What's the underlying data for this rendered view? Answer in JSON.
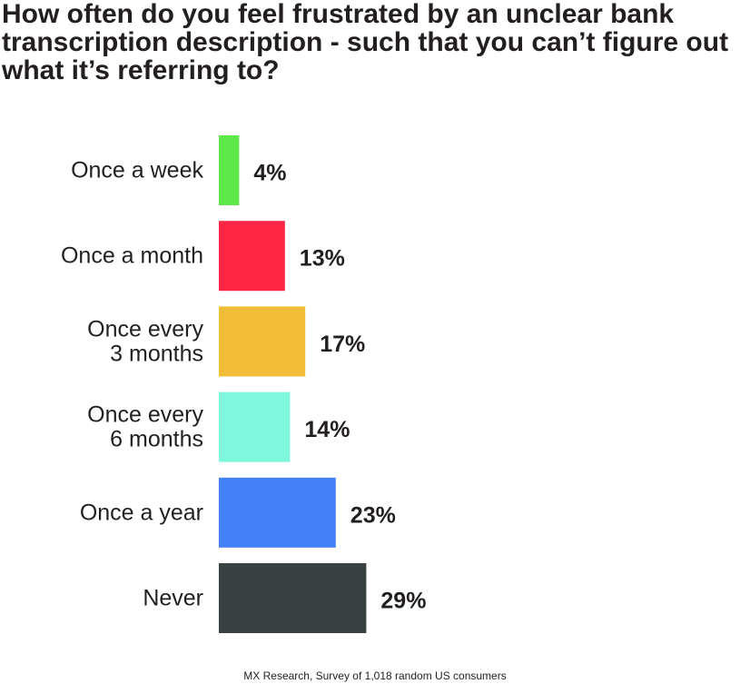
{
  "chart_data": {
    "type": "bar",
    "orientation": "horizontal",
    "title": "How often do you feel frustrated by an unclear bank transcription description - such that you can’t figure out what it’s referring to?",
    "categories": [
      [
        "Once a week"
      ],
      [
        "Once a month"
      ],
      [
        "Once every",
        "3 months"
      ],
      [
        "Once every",
        "6 months"
      ],
      [
        "Once a year"
      ],
      [
        "Never"
      ]
    ],
    "values": [
      4,
      13,
      17,
      14,
      23,
      29
    ],
    "value_labels": [
      "4%",
      "13%",
      "17%",
      "14%",
      "23%",
      "29%"
    ],
    "unit": "%",
    "colors": [
      "#5ee84a",
      "#ff2645",
      "#f2bd36",
      "#7ff7dc",
      "#4480f7",
      "#394143"
    ],
    "xlim": [
      0,
      100
    ],
    "grid": false,
    "legend": "none",
    "source": "MX Research, Survey of 1,018 random US consumers"
  }
}
